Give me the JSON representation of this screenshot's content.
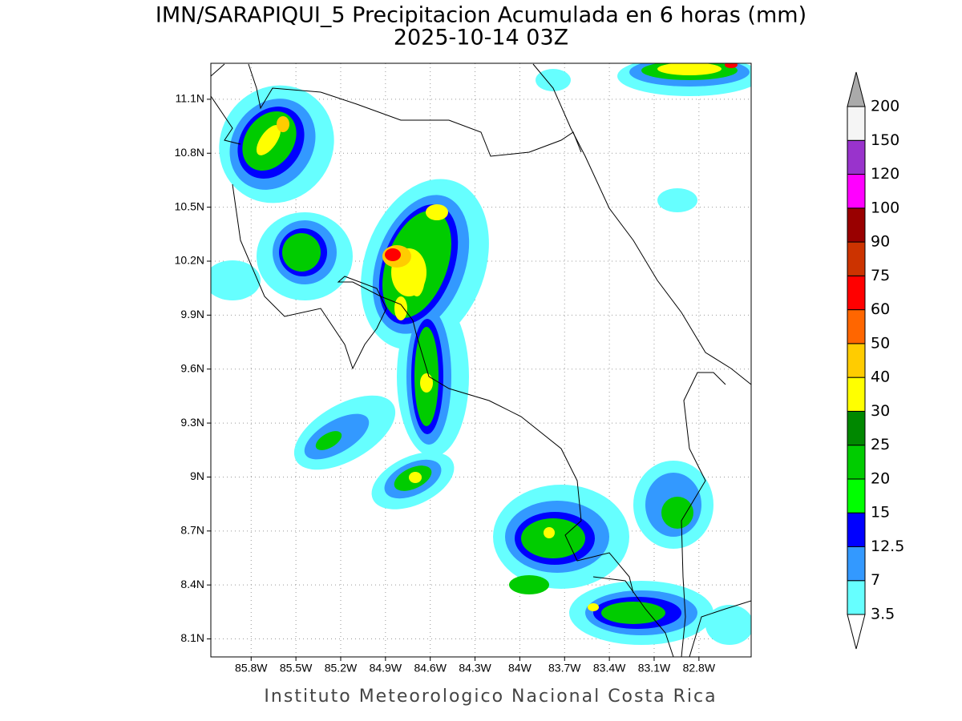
{
  "map": {
    "title": "IMN/SARAPIQUI_5 Precipitacion Acumulada en 6 horas (mm)",
    "subtitle": "2025-10-14 03Z",
    "footer": "Instituto Meteorologico Nacional Costa Rica",
    "xlim": [
      -86.07,
      -82.45
    ],
    "ylim": [
      8.0,
      11.3
    ],
    "grid": true,
    "xticks": [
      {
        "value": -85.8,
        "label": "85.8W"
      },
      {
        "value": -85.5,
        "label": "85.5W"
      },
      {
        "value": -85.2,
        "label": "85.2W"
      },
      {
        "value": -84.9,
        "label": "84.9W"
      },
      {
        "value": -84.6,
        "label": "84.6W"
      },
      {
        "value": -84.3,
        "label": "84.3W"
      },
      {
        "value": -84.0,
        "label": "84W"
      },
      {
        "value": -83.7,
        "label": "83.7W"
      },
      {
        "value": -83.4,
        "label": "83.4W"
      },
      {
        "value": -83.1,
        "label": "83.1W"
      },
      {
        "value": -82.8,
        "label": "82.8W"
      }
    ],
    "yticks": [
      {
        "value": 8.1,
        "label": "8.1N"
      },
      {
        "value": 8.4,
        "label": "8.4N"
      },
      {
        "value": 8.7,
        "label": "8.7N"
      },
      {
        "value": 9.0,
        "label": "9N"
      },
      {
        "value": 9.3,
        "label": "9.3N"
      },
      {
        "value": 9.6,
        "label": "9.6N"
      },
      {
        "value": 9.9,
        "label": "9.9N"
      },
      {
        "value": 10.2,
        "label": "10.2N"
      },
      {
        "value": 10.5,
        "label": "10.5N"
      },
      {
        "value": 10.8,
        "label": "10.8N"
      },
      {
        "value": 11.1,
        "label": "11.1N"
      }
    ],
    "colorbar": {
      "levels": [
        3.5,
        7,
        12.5,
        15,
        20,
        25,
        30,
        40,
        50,
        60,
        75,
        90,
        100,
        120,
        150,
        200
      ],
      "colors": [
        "#ffffff",
        "#66ffff",
        "#3399ff",
        "#0000ff",
        "#00ff00",
        "#00cc00",
        "#008800",
        "#ffff00",
        "#ffcc00",
        "#ff6600",
        "#ff0000",
        "#cc3300",
        "#990000",
        "#ff00ff",
        "#9933cc",
        "#f5f5f5",
        "#aaaaaa"
      ]
    }
  }
}
